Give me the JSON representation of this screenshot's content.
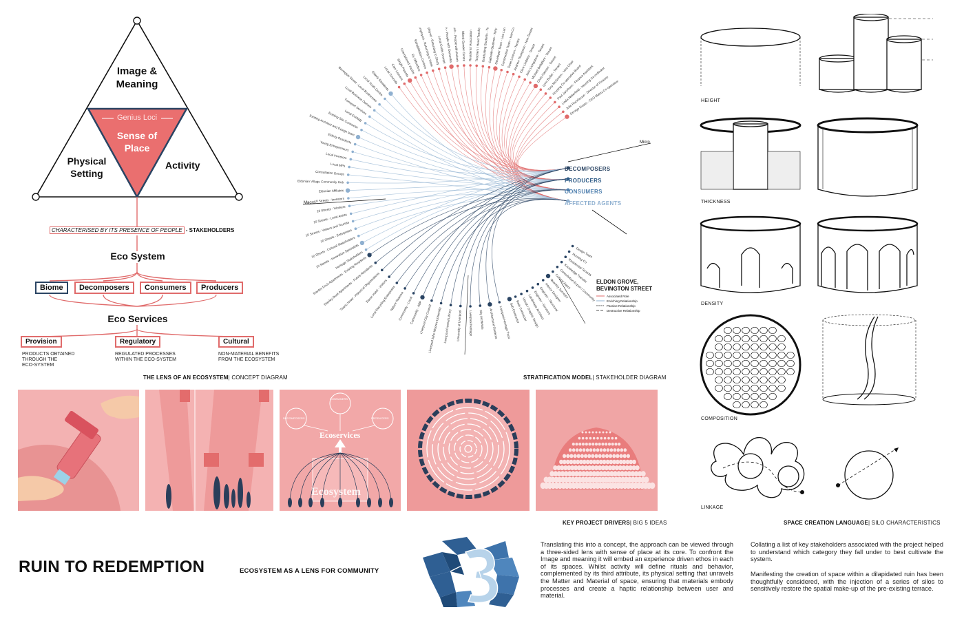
{
  "concept": {
    "image_meaning": [
      "Image &",
      "Meaning"
    ],
    "genius_loci": "Genius Loci",
    "sense_of_place": [
      "Sense of",
      "Place"
    ],
    "physical_setting": [
      "Physical",
      "Setting"
    ],
    "activity": "Activity",
    "characterised": "CHARACTERISED BY ITS PRESENCE OF PEOPLE",
    "stakeholders": " - STAKEHOLDERS",
    "eco_system": "Eco System",
    "biome": "Biome",
    "decomposers": "Decomposers",
    "consumers": "Consumers",
    "producers": "Producers",
    "eco_services": "Eco Services",
    "provision": "Provision",
    "regulatory": "Regulatory",
    "cultural": "Cultural",
    "provision_desc": [
      "PRODUCTS OBTAINED",
      "THROUGH THE",
      "ECO-SYSTEM"
    ],
    "regulatory_desc": [
      "REGULATED PROCESSES",
      "WITHIN THE ECO-SYSTEM"
    ],
    "cultural_desc": [
      "NON-MATERIAL BENEFITS",
      "FROM THE ECOSYSTEM"
    ],
    "caption_bold": "THE LENS OF AN ECOSYSTEM",
    "caption_rest": "| CONCEPT DIAGRAM"
  },
  "strat": {
    "categories": [
      "DECOMPOSERS",
      "PRODUCERS",
      "CONSUMERS",
      "AFFECTED AGENTS"
    ],
    "category_colors": [
      "#2a4463",
      "#2e5b86",
      "#4e7fae",
      "#8fb0d0"
    ],
    "macro": "Macro",
    "micro": "Micro",
    "legend_title": [
      "ELDON GROVE,",
      "BEVINGTON STREET"
    ],
    "legend_items": [
      "Associated Role",
      "Enriching Relationship",
      "Passive Relationship",
      "Destructive Relationship"
    ],
    "caption_bold": "STRATIFICATION MODEL",
    "caption_rest": "| STAKEHOLDER DIAGRAM",
    "top_labels": [
      "George Evans - CEO Matrix Co-operative",
      "Julie Rockhouse - Director of Finance",
      "Linda Waterfield - Housing Co-ordinator",
      "Paul Jacobson - Finance Assistant",
      "Housing Co-operative Board",
      "Tony McGivern - Vice Chair",
      "Lynn Butler - Tenant",
      "Chris Hanson - Tenant",
      "Michael Bellalfont - Tenant",
      "John Livingstone - Tenant",
      "Clive Lindsley - Tenant",
      "Andrew Thompson - Non-Tenant",
      "Dave Lennon - Tenant",
      "Construction Team - Ivan Cure",
      "Developer Team - Lisa Lane",
      "Galbraith Students - Tony Primary School",
      "Graduating Students - Tony Primary School",
      "Teachers / Head Teacher",
      "Residents' Association",
      "Mixed Gender Centre",
      "Church - People with Autism",
      "Church - People with Dementia",
      "Local Crafts Groups",
      "The Unemployed - Returning to Study",
      "The Unemployed - Returning to Work",
      "Rehabilitation Centres",
      "Ex Offenders",
      "Unemployed Youths",
      "Single Parents",
      "Care Leavers",
      "Local Councils"
    ],
    "left_labels": [
      "Elderly Residents",
      "Local Youth Centre",
      "Bevington Street - Local Businesses",
      "Local Business Owners",
      "Transport Services",
      "Local Ecology",
      "Existing Site Contractor",
      "Existing Architect and Design team",
      "Elderly Residents",
      "Young Entrepreneurs",
      "Local Investors",
      "Local MPs",
      "Consultation Groups",
      "Eldonian Village Community Hub",
      "Eldonian Affiliates",
      "10 Streets - Investors",
      "10 Streets - Workers",
      "10 Streets - Local Artists",
      "10 Streets - Visitors and Tourists",
      "10 Streets - Enterprises",
      "10 Streets - Cultural Stakeholders",
      "10 Streets - Innovation Specialists",
      "Heritage Stakeholders"
    ],
    "bottom_labels": [
      "Stanley Dock Apartments - Existing Residents",
      "Stanley Dock Apartments - Future Residents",
      "Titanic Hotel - Historical Organisations",
      "Titanic Hotel - Visitors",
      "Local Recycling Enterprises",
      "Nature Reserve",
      "Community - Local",
      "Community - ABP",
      "Liverpool City Council",
      "Liverpool John Moores University",
      "Liverpool Central Library",
      "University of Liverpool",
      "Liverpool Heritage",
      "City Archivists",
      "Architectural Students",
      "Liverpool Heritage Trust"
    ],
    "right_labels": [
      "Sub-Contractor",
      "Main Contractor",
      "Visual / Graphic Design",
      "Landscape Architect",
      "Engineer - Services",
      "Engineer - Structural",
      "Interior Designer",
      "Quantity Surveyor",
      "Cultural Agent",
      "Consultation Expert / Community",
      "Knowledge Transfer",
      "Residential Tenants",
      "Housing Co",
      "Design Team"
    ]
  },
  "panels": {
    "p3_top": "CONSUMERS",
    "p3_left": "DECOMPOSERS",
    "p3_right": "PRODUCERS",
    "p3_mid": "Ecoservices",
    "p3_bottom": "Ecosystem",
    "caption_bold": "KEY PROJECT DRIVERS",
    "caption_rest": "| BIG 5 IDEAS"
  },
  "silo": {
    "labels": [
      "HEIGHT",
      "THICKNESS",
      "DENSITY",
      "COMPOSITION",
      "LINKAGE"
    ],
    "caption_bold": "SPACE CREATION LANGUAGE",
    "caption_rest": "| SILO CHARACTERISTICS"
  },
  "footer": {
    "title": "RUIN TO REDEMPTION",
    "subtitle": "ECOSYSTEM AS A LENS FOR COMMUNITY",
    "para1": "Translating this into a concept, the approach can be viewed through a three-sided lens with sense of place at its core. To confront the Image and meaning it will embed an experience driven ethos in each of its spaces. Whilst activity will define rituals and behavior, complemented by its third attribute, its physical setting that unravels the Matter and Material of space, ensuring that materials embody processes and create a haptic relationship between user and material.",
    "para2a": "Collating a list of key stakeholders associated with the project helped to understand which category they fall under to best cultivate the system.",
    "para2b": "Manifesting the creation of space within a dilapidated ruin has been thoughtfully considered, with the injection of a series of silos to sensitively restore the spatial make-up of the pre-existing terrace."
  },
  "colors": {
    "accent": "#e06b6b",
    "pink_bg": "#f0a1a1",
    "navy": "#2a4463"
  }
}
